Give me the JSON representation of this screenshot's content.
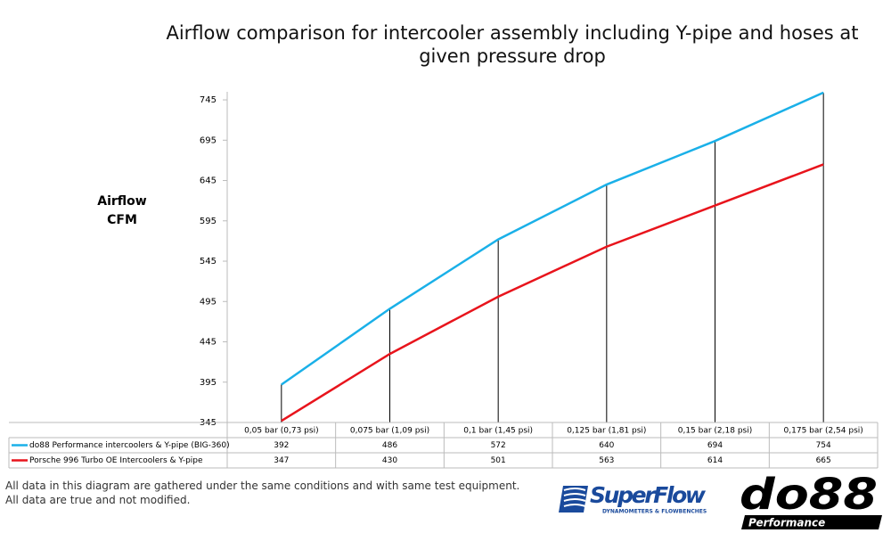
{
  "chart_data": {
    "type": "line",
    "title": "Airflow comparison for intercooler assembly including Y-pipe and hoses at given pressure drop",
    "y_label": "Airflow CFM",
    "categories": [
      "0,05 bar (0,73 psi)",
      "0,075 bar (1,09 psi)",
      "0,1 bar (1,45 psi)",
      "0,125 bar (1,81 psi)",
      "0,15 bar (2,18 psi)",
      "0,175 bar (2,54 psi)"
    ],
    "series": [
      {
        "name": "do88 Performance intercoolers & Y-pipe (BIG-360)",
        "color": "#1ab0e8",
        "values": [
          392,
          486,
          572,
          640,
          694,
          754
        ]
      },
      {
        "name": "Porsche 996 Turbo OE Intercoolers & Y-pipe",
        "color": "#e8141c",
        "values": [
          347,
          430,
          501,
          563,
          614,
          665
        ]
      }
    ],
    "ylim": [
      345,
      755
    ],
    "yticks": [
      345,
      395,
      445,
      495,
      545,
      595,
      645,
      695,
      745
    ],
    "drop_lines": true,
    "footnotes": [
      "All data in this diagram are gathered under the same conditions and with same test equipment.",
      "All data are true and not modified."
    ],
    "logos": {
      "superflow": "SuperFlow",
      "superflow_tagline": "DYNAMOMETERS & FLOWBENCHES",
      "do88": "do88",
      "do88_tagline": "Performance"
    }
  }
}
